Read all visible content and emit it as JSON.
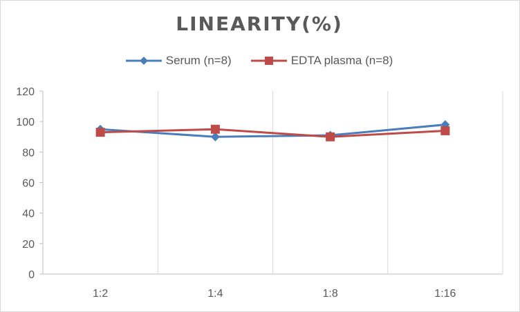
{
  "chart_data": {
    "type": "line",
    "title": "LINEARITY(%)",
    "xlabel": "",
    "ylabel": "",
    "categories": [
      "1:2",
      "1:4",
      "1:8",
      "1:16"
    ],
    "ylim": [
      0,
      120
    ],
    "yticks": [
      0,
      20,
      40,
      60,
      80,
      100,
      120
    ],
    "grid": "vertical",
    "legend_position": "top",
    "series": [
      {
        "name": "Serum (n=8)",
        "values": [
          95,
          90,
          91,
          98
        ],
        "color": "#4a7ebb",
        "marker": "diamond"
      },
      {
        "name": "EDTA plasma (n=8)",
        "values": [
          93,
          95,
          90,
          94
        ],
        "color": "#be4b48",
        "marker": "square"
      }
    ]
  }
}
